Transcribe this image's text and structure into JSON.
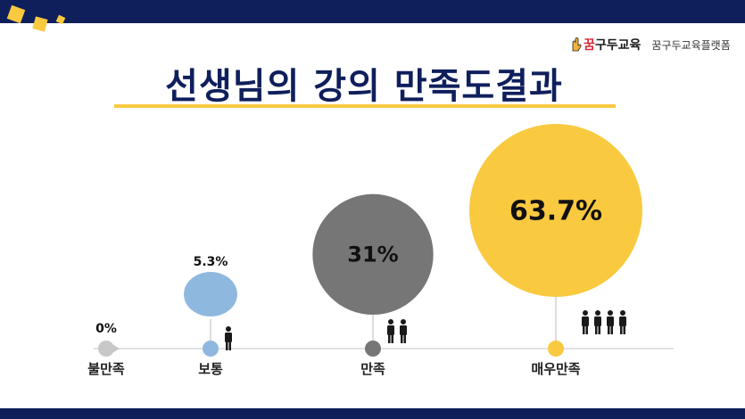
{
  "header": {
    "title": "선생님의 강의 만족도결과"
  },
  "brand": {
    "logo_text_accent": "꿈",
    "logo_text_rest": "구두교육",
    "name": "꿈구두교육플랫폼"
  },
  "colors": {
    "navy": "#0f1f5c",
    "accent_yellow": "#f9c940",
    "baseline": "#d0d0d0"
  },
  "chart_data": {
    "type": "bubble",
    "title": "선생님의 강의 만족도결과",
    "categories": [
      "불만족",
      "보통",
      "만족",
      "매우만족"
    ],
    "values": [
      0,
      5.3,
      31,
      63.7
    ],
    "value_labels": [
      "0%",
      "5.3%",
      "31%",
      "63.7%"
    ],
    "unit": "%",
    "colors": [
      "#c8c8c8",
      "#8fb8df",
      "#767676",
      "#f9c940"
    ],
    "people_icons": [
      0,
      1,
      2,
      4
    ]
  }
}
